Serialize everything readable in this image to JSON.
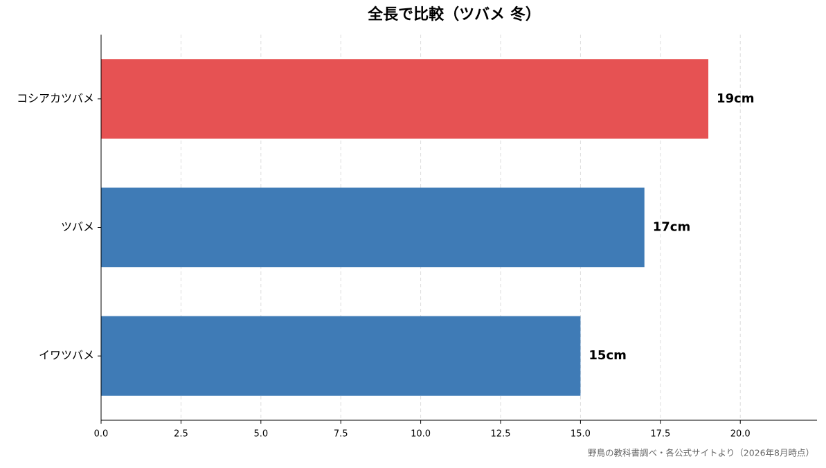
{
  "chart_data": {
    "type": "barh",
    "title": "全長で比較（ツバメ 冬）",
    "categories": [
      "コシアカツバメ",
      "ツバメ",
      "イワツバメ"
    ],
    "values": [
      19,
      17,
      15
    ],
    "value_labels": [
      "19cm",
      "17cm",
      "15cm"
    ],
    "colors": [
      "#e65253",
      "#3f7bb6",
      "#3f7bb6"
    ],
    "xlim": [
      0,
      22.4
    ],
    "xticks": [
      {
        "value": 0,
        "label": "0.0"
      },
      {
        "value": 2.5,
        "label": "2.5"
      },
      {
        "value": 5,
        "label": "5.0"
      },
      {
        "value": 7.5,
        "label": "7.5"
      },
      {
        "value": 10,
        "label": "10.0"
      },
      {
        "value": 12.5,
        "label": "12.5"
      },
      {
        "value": 15,
        "label": "15.0"
      },
      {
        "value": 17.5,
        "label": "17.5"
      },
      {
        "value": 20,
        "label": "20.0"
      }
    ],
    "grid": true,
    "source": "野鳥の教科書調べ・各公式サイトより（2026年8月時点）"
  }
}
